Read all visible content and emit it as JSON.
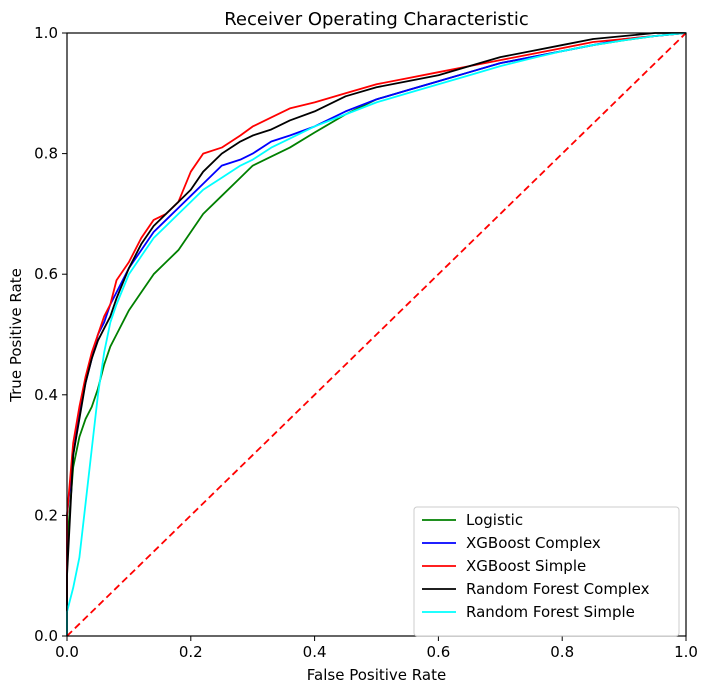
{
  "chart_data": {
    "type": "line",
    "title": "Receiver Operating Characteristic",
    "xlabel": "False Positive Rate",
    "ylabel": "True Positive Rate",
    "xlim": [
      0.0,
      1.0
    ],
    "ylim": [
      0.0,
      1.0
    ],
    "xticks": [
      "0.0",
      "0.2",
      "0.4",
      "0.6",
      "0.8",
      "1.0"
    ],
    "yticks": [
      "0.0",
      "0.2",
      "0.4",
      "0.6",
      "0.8",
      "1.0"
    ],
    "grid": false,
    "legend_position": "lower-right",
    "series": [
      {
        "name": "Logistic",
        "color": "#008000",
        "x": [
          0.0,
          0.0,
          0.01,
          0.02,
          0.03,
          0.04,
          0.05,
          0.06,
          0.07,
          0.08,
          0.1,
          0.12,
          0.14,
          0.16,
          0.18,
          0.2,
          0.22,
          0.25,
          0.28,
          0.3,
          0.33,
          0.36,
          0.4,
          0.45,
          0.5,
          0.55,
          0.6,
          0.65,
          0.7,
          0.75,
          0.8,
          0.85,
          0.9,
          0.95,
          1.0
        ],
        "y": [
          0.0,
          0.15,
          0.28,
          0.33,
          0.36,
          0.38,
          0.41,
          0.45,
          0.48,
          0.5,
          0.54,
          0.57,
          0.6,
          0.62,
          0.64,
          0.67,
          0.7,
          0.73,
          0.76,
          0.78,
          0.795,
          0.81,
          0.835,
          0.865,
          0.89,
          0.905,
          0.92,
          0.935,
          0.95,
          0.96,
          0.97,
          0.98,
          0.988,
          0.995,
          1.0
        ]
      },
      {
        "name": "XGBoost Complex",
        "color": "#0000ff",
        "x": [
          0.0,
          0.0,
          0.01,
          0.02,
          0.03,
          0.04,
          0.05,
          0.06,
          0.07,
          0.08,
          0.1,
          0.12,
          0.14,
          0.16,
          0.18,
          0.2,
          0.22,
          0.25,
          0.28,
          0.3,
          0.33,
          0.36,
          0.4,
          0.45,
          0.5,
          0.55,
          0.6,
          0.65,
          0.7,
          0.75,
          0.8,
          0.85,
          0.9,
          0.95,
          1.0
        ],
        "y": [
          0.0,
          0.2,
          0.3,
          0.37,
          0.42,
          0.46,
          0.5,
          0.52,
          0.55,
          0.57,
          0.61,
          0.64,
          0.67,
          0.69,
          0.71,
          0.73,
          0.75,
          0.78,
          0.79,
          0.8,
          0.82,
          0.83,
          0.845,
          0.87,
          0.89,
          0.905,
          0.92,
          0.935,
          0.95,
          0.96,
          0.97,
          0.98,
          0.99,
          0.995,
          1.0
        ]
      },
      {
        "name": "XGBoost Simple",
        "color": "#ff0000",
        "x": [
          0.0,
          0.0,
          0.01,
          0.02,
          0.03,
          0.04,
          0.05,
          0.06,
          0.07,
          0.08,
          0.1,
          0.12,
          0.14,
          0.16,
          0.18,
          0.2,
          0.22,
          0.25,
          0.28,
          0.3,
          0.33,
          0.36,
          0.4,
          0.45,
          0.5,
          0.55,
          0.6,
          0.65,
          0.7,
          0.75,
          0.8,
          0.85,
          0.9,
          0.95,
          1.0
        ],
        "y": [
          0.0,
          0.2,
          0.32,
          0.38,
          0.43,
          0.47,
          0.5,
          0.53,
          0.55,
          0.59,
          0.62,
          0.66,
          0.69,
          0.7,
          0.72,
          0.77,
          0.8,
          0.81,
          0.83,
          0.845,
          0.86,
          0.875,
          0.885,
          0.9,
          0.915,
          0.925,
          0.935,
          0.945,
          0.955,
          0.965,
          0.975,
          0.985,
          0.99,
          0.995,
          1.0
        ]
      },
      {
        "name": "Random Forest Complex",
        "color": "#000000",
        "x": [
          0.0,
          0.0,
          0.01,
          0.02,
          0.03,
          0.04,
          0.05,
          0.06,
          0.07,
          0.08,
          0.1,
          0.12,
          0.14,
          0.16,
          0.18,
          0.2,
          0.22,
          0.25,
          0.28,
          0.3,
          0.33,
          0.36,
          0.4,
          0.45,
          0.5,
          0.55,
          0.6,
          0.65,
          0.7,
          0.75,
          0.8,
          0.85,
          0.9,
          0.95,
          1.0
        ],
        "y": [
          0.0,
          0.1,
          0.3,
          0.36,
          0.42,
          0.46,
          0.49,
          0.51,
          0.53,
          0.56,
          0.61,
          0.65,
          0.68,
          0.7,
          0.72,
          0.74,
          0.77,
          0.8,
          0.82,
          0.83,
          0.84,
          0.855,
          0.87,
          0.895,
          0.91,
          0.92,
          0.93,
          0.945,
          0.96,
          0.97,
          0.98,
          0.99,
          0.995,
          1.0,
          1.0
        ]
      },
      {
        "name": "Random Forest Simple",
        "color": "#00ffff",
        "x": [
          0.0,
          0.0,
          0.01,
          0.02,
          0.03,
          0.04,
          0.05,
          0.06,
          0.07,
          0.08,
          0.1,
          0.12,
          0.14,
          0.16,
          0.18,
          0.2,
          0.22,
          0.25,
          0.28,
          0.3,
          0.33,
          0.36,
          0.4,
          0.45,
          0.5,
          0.55,
          0.6,
          0.65,
          0.7,
          0.75,
          0.8,
          0.85,
          0.9,
          0.95,
          1.0
        ],
        "y": [
          0.0,
          0.04,
          0.08,
          0.13,
          0.22,
          0.31,
          0.4,
          0.47,
          0.52,
          0.55,
          0.6,
          0.63,
          0.66,
          0.68,
          0.7,
          0.72,
          0.74,
          0.76,
          0.78,
          0.79,
          0.81,
          0.825,
          0.845,
          0.865,
          0.885,
          0.9,
          0.915,
          0.93,
          0.945,
          0.958,
          0.97,
          0.98,
          0.988,
          0.995,
          1.0
        ]
      },
      {
        "name": "",
        "color": "#ff0000",
        "dashed": true,
        "x": [
          0.0,
          1.0
        ],
        "y": [
          0.0,
          1.0
        ]
      }
    ]
  }
}
